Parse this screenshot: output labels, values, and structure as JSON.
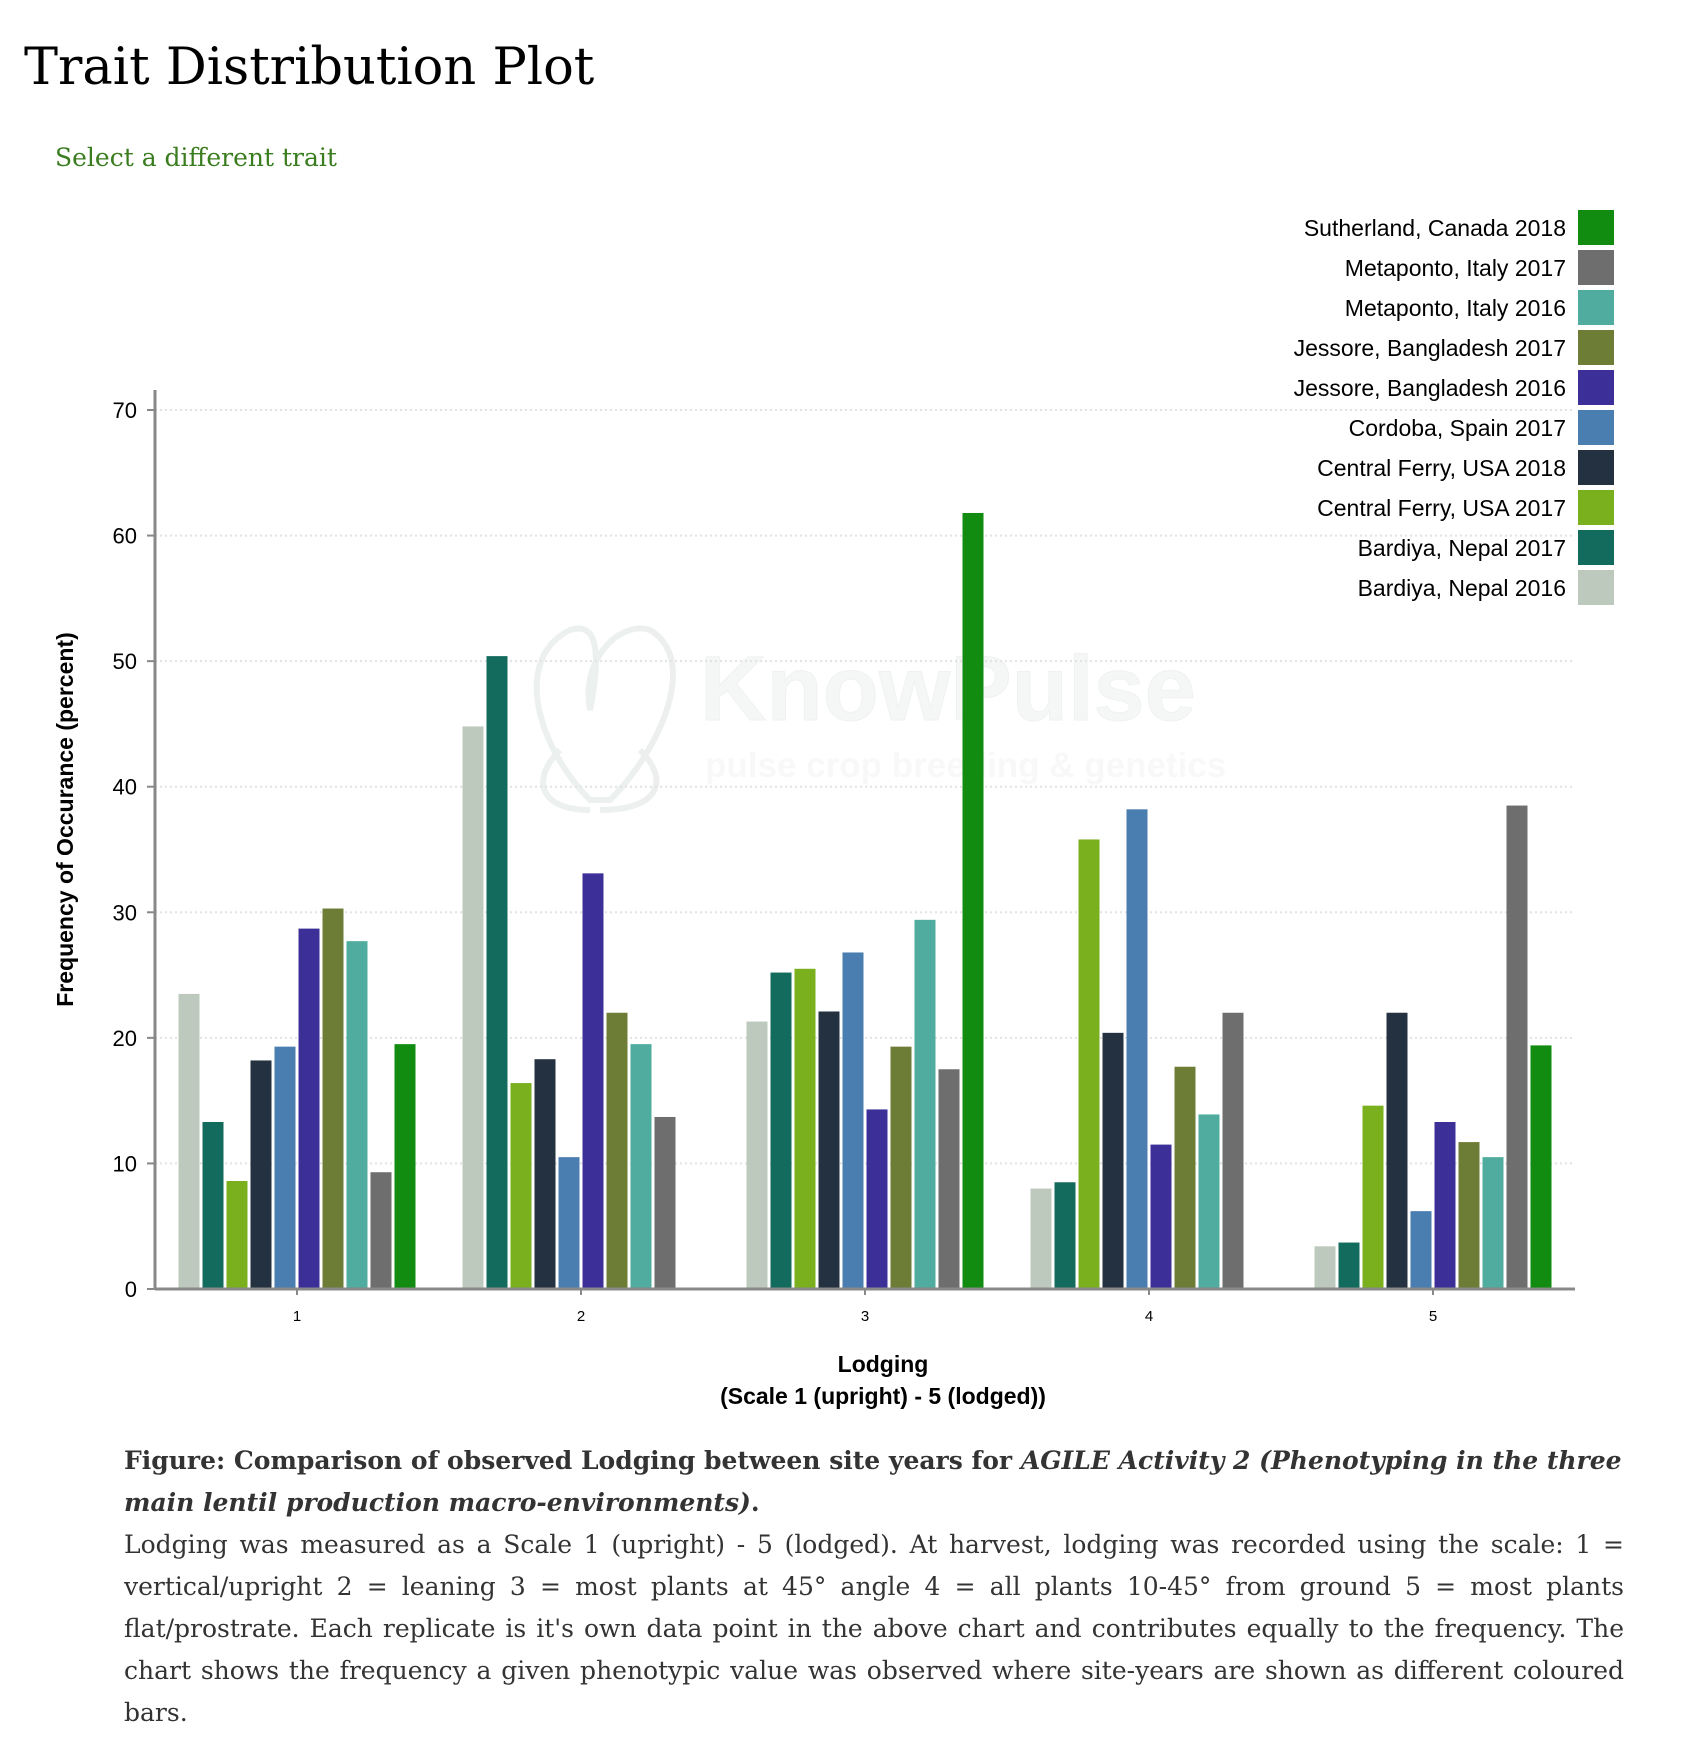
{
  "page_title": "Trait Distribution Plot",
  "trait_link": "Select a different trait",
  "watermark": {
    "name": "KnowPulse",
    "tagline": "pulse crop breeding & genetics"
  },
  "caption": {
    "title_prefix": "Figure: Comparison of observed Lodging between site years for ",
    "title_italic": "AGILE Activity 2 (Phenotyping in the three main lentil production macro-environments)",
    "title_suffix": ".",
    "description": "Lodging was measured as a Scale 1 (upright) - 5 (lodged). At harvest, lodging was recorded using the scale: 1 = vertical/upright 2 = leaning 3 = most plants at 45° angle 4 = all plants 10-45° from ground 5 = most plants flat/prostrate. Each replicate is it's own data point in the above chart and contributes equally to the frequency. The chart shows the frequency a given phenotypic value was observed where site-years are shown as different coloured bars."
  },
  "chart_data": {
    "type": "bar",
    "title": "",
    "xlabel": "Lodging",
    "xlabel_sub": "(Scale 1 (upright) - 5 (lodged))",
    "ylabel": "Frequency of Occurance (percent)",
    "ylim": [
      0,
      70
    ],
    "yticks": [
      0,
      10,
      20,
      30,
      40,
      50,
      60,
      70
    ],
    "grid": true,
    "legend_position": "top-right",
    "categories": [
      "1",
      "2",
      "3",
      "4",
      "5"
    ],
    "series": [
      {
        "name": "Bardiya, Nepal 2016",
        "color": "#bec9bd",
        "values": [
          23.5,
          44.8,
          21.3,
          8.0,
          3.4
        ]
      },
      {
        "name": "Bardiya, Nepal 2017",
        "color": "#126b5d",
        "values": [
          13.3,
          50.4,
          25.2,
          8.5,
          3.7
        ]
      },
      {
        "name": "Central Ferry, USA 2017",
        "color": "#7ab01e",
        "values": [
          8.6,
          16.4,
          25.5,
          35.8,
          14.6
        ]
      },
      {
        "name": "Central Ferry, USA 2018",
        "color": "#243140",
        "values": [
          18.2,
          18.3,
          22.1,
          20.4,
          22.0
        ]
      },
      {
        "name": "Cordoba, Spain 2017",
        "color": "#4a7db0",
        "values": [
          19.3,
          10.5,
          26.8,
          38.2,
          6.2
        ]
      },
      {
        "name": "Jessore, Bangladesh 2016",
        "color": "#3c3098",
        "values": [
          28.7,
          33.1,
          14.3,
          11.5,
          13.3
        ]
      },
      {
        "name": "Jessore, Bangladesh 2017",
        "color": "#6e7d35",
        "values": [
          30.3,
          22.0,
          19.3,
          17.7,
          11.7
        ]
      },
      {
        "name": "Metaponto, Italy 2016",
        "color": "#4fac9e",
        "values": [
          27.7,
          19.5,
          29.4,
          13.9,
          10.5
        ]
      },
      {
        "name": "Metaponto, Italy 2017",
        "color": "#6e6e6e",
        "values": [
          9.3,
          13.7,
          17.5,
          22.0,
          38.5
        ]
      },
      {
        "name": "Sutherland, Canada 2018",
        "color": "#118c11",
        "values": [
          19.5,
          null,
          61.8,
          null,
          19.4
        ]
      }
    ]
  }
}
